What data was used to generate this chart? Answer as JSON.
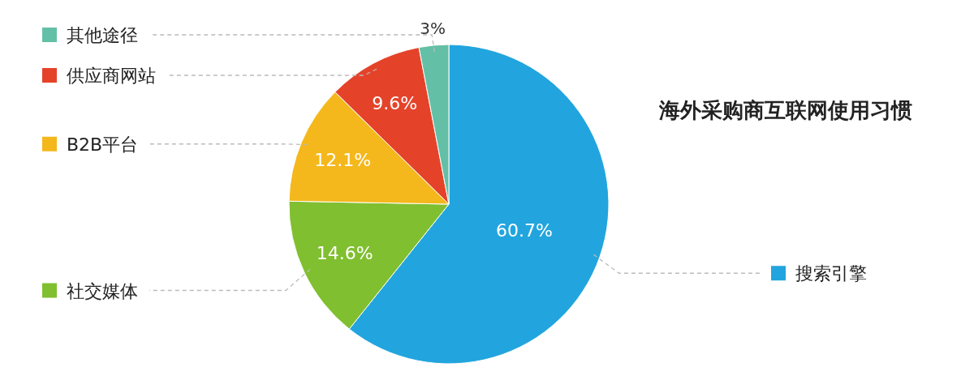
{
  "chart_data": {
    "type": "pie",
    "title": "海外采购商互联网使用习惯",
    "categories": [
      "搜索引擎",
      "社交媒体",
      "B2B平台",
      "供应商网站",
      "其他途径"
    ],
    "values": [
      60.7,
      14.6,
      12.1,
      9.6,
      3
    ],
    "colors": [
      "#22a5de",
      "#80bf30",
      "#f4b81c",
      "#e4432a",
      "#63c0a6"
    ],
    "value_labels": [
      "60.7%",
      "14.6%",
      "12.1%",
      "9.6%",
      "3%"
    ],
    "legend": "left"
  }
}
